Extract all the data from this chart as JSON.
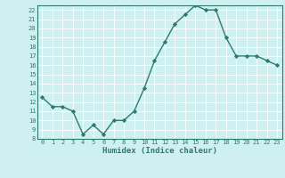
{
  "x": [
    0,
    1,
    2,
    3,
    4,
    5,
    6,
    7,
    8,
    9,
    10,
    11,
    12,
    13,
    14,
    15,
    16,
    17,
    18,
    19,
    20,
    21,
    22,
    23
  ],
  "y": [
    12.5,
    11.5,
    11.5,
    11.0,
    8.5,
    9.5,
    8.5,
    10.0,
    10.0,
    11.0,
    13.5,
    16.5,
    18.5,
    20.5,
    21.5,
    22.5,
    22.0,
    22.0,
    19.0,
    17.0,
    17.0,
    17.0,
    16.5,
    16.0
  ],
  "xlabel": "Humidex (Indice chaleur)",
  "line_color": "#2e7b6e",
  "marker": "D",
  "marker_size": 2.2,
  "bg_color": "#cff0f0",
  "grid_color": "#ffffff",
  "tick_color": "#2e7b6e",
  "xlim": [
    -0.5,
    23.5
  ],
  "ylim": [
    8,
    22.5
  ],
  "yticks": [
    8,
    9,
    10,
    11,
    12,
    13,
    14,
    15,
    16,
    17,
    18,
    19,
    20,
    21,
    22
  ],
  "xticks": [
    0,
    1,
    2,
    3,
    4,
    5,
    6,
    7,
    8,
    9,
    10,
    11,
    12,
    13,
    14,
    15,
    16,
    17,
    18,
    19,
    20,
    21,
    22,
    23
  ]
}
